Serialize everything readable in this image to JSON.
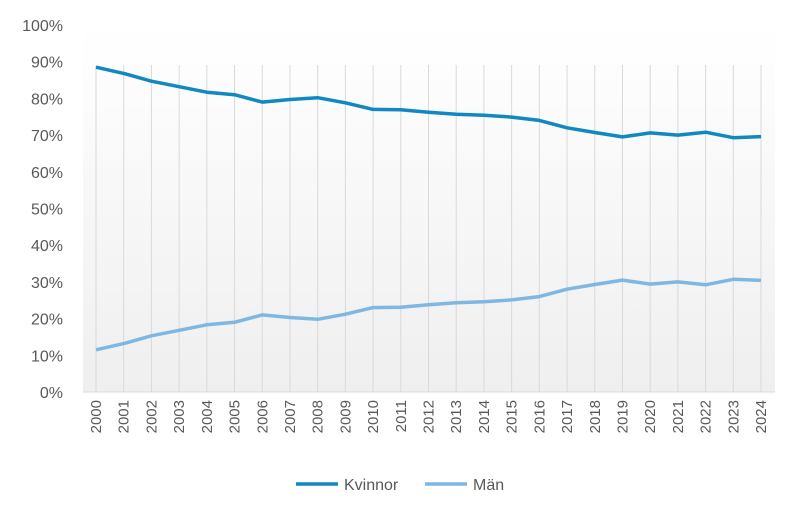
{
  "chart_data": {
    "type": "line",
    "title": "",
    "xlabel": "",
    "ylabel": "",
    "ylim": [
      0,
      100
    ],
    "y_ticks": [
      "0%",
      "10%",
      "20%",
      "30%",
      "40%",
      "50%",
      "60%",
      "70%",
      "80%",
      "90%",
      "100%"
    ],
    "categories": [
      "2000",
      "2001",
      "2002",
      "2003",
      "2004",
      "2005",
      "2006",
      "2007",
      "2008",
      "2009",
      "2010",
      "2011",
      "2012",
      "2013",
      "2014",
      "2015",
      "2016",
      "2017",
      "2018",
      "2019",
      "2020",
      "2021",
      "2022",
      "2023",
      "2024"
    ],
    "series": [
      {
        "name": "Kvinnor",
        "color": "#1188C0",
        "values": [
          88.5,
          86.8,
          84.7,
          83.2,
          81.7,
          81.0,
          79.0,
          79.7,
          80.2,
          78.8,
          77.0,
          76.9,
          76.2,
          75.7,
          75.4,
          74.9,
          74.0,
          72.0,
          70.7,
          69.5,
          70.6,
          70.0,
          70.8,
          69.3,
          69.6
        ]
      },
      {
        "name": "Män",
        "color": "#7EB8E2",
        "values": [
          11.5,
          13.2,
          15.3,
          16.8,
          18.3,
          19.0,
          21.0,
          20.3,
          19.8,
          21.2,
          23.0,
          23.1,
          23.8,
          24.3,
          24.6,
          25.1,
          26.0,
          28.0,
          29.3,
          30.5,
          29.4,
          30.0,
          29.2,
          30.7,
          30.4
        ]
      }
    ],
    "grid": "vertical",
    "legend_position": "bottom"
  }
}
